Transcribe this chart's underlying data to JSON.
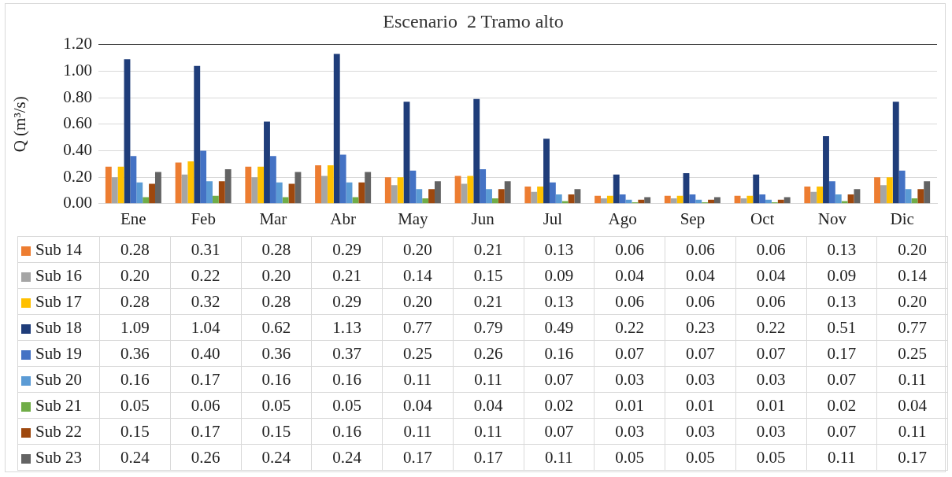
{
  "chart_data": {
    "type": "bar",
    "title": "Escenario  2 Tramo alto",
    "ylabel": "Q (m³/s)",
    "categories": [
      "Ene",
      "Feb",
      "Mar",
      "Abr",
      "May",
      "Jun",
      "Jul",
      "Ago",
      "Sep",
      "Oct",
      "Nov",
      "Dic"
    ],
    "series": [
      {
        "name": "Sub 14",
        "color": "#ed7d31",
        "values": [
          0.28,
          0.31,
          0.28,
          0.29,
          0.2,
          0.21,
          0.13,
          0.06,
          0.06,
          0.06,
          0.13,
          0.2
        ],
        "value_labels": [
          "0.28",
          "0.31",
          "0.28",
          "0.29",
          "0.20",
          "0.21",
          "0.13",
          "0.06",
          "0.06",
          "0.06",
          "0.13",
          "0.20"
        ]
      },
      {
        "name": "Sub 16",
        "color": "#a5a5a5",
        "values": [
          0.2,
          0.22,
          0.2,
          0.21,
          0.14,
          0.15,
          0.09,
          0.04,
          0.04,
          0.04,
          0.09,
          0.14
        ],
        "value_labels": [
          "0.20",
          "0.22",
          "0.20",
          "0.21",
          "0.14",
          "0.15",
          "0.09",
          "0.04",
          "0.04",
          "0.04",
          "0.09",
          "0.14"
        ]
      },
      {
        "name": "Sub 17",
        "color": "#ffc000",
        "values": [
          0.28,
          0.32,
          0.28,
          0.29,
          0.2,
          0.21,
          0.13,
          0.06,
          0.06,
          0.06,
          0.13,
          0.2
        ],
        "value_labels": [
          "0.28",
          "0.32",
          "0.28",
          "0.29",
          "0.20",
          "0.21",
          "0.13",
          "0.06",
          "0.06",
          "0.06",
          "0.13",
          "0.20"
        ]
      },
      {
        "name": "Sub 18",
        "color": "#1f3d7a",
        "values": [
          1.09,
          1.04,
          0.62,
          1.13,
          0.77,
          0.79,
          0.49,
          0.22,
          0.23,
          0.22,
          0.51,
          0.77
        ],
        "value_labels": [
          "1.09",
          "1.04",
          "0.62",
          "1.13",
          "0.77",
          "0.79",
          "0.49",
          "0.22",
          "0.23",
          "0.22",
          "0.51",
          "0.77"
        ]
      },
      {
        "name": "Sub 19",
        "color": "#4472c4",
        "values": [
          0.36,
          0.4,
          0.36,
          0.37,
          0.25,
          0.26,
          0.16,
          0.07,
          0.07,
          0.07,
          0.17,
          0.25
        ],
        "value_labels": [
          "0.36",
          "0.40",
          "0.36",
          "0.37",
          "0.25",
          "0.26",
          "0.16",
          "0.07",
          "0.07",
          "0.07",
          "0.17",
          "0.25"
        ]
      },
      {
        "name": "Sub 20",
        "color": "#5b9bd5",
        "values": [
          0.16,
          0.17,
          0.16,
          0.16,
          0.11,
          0.11,
          0.07,
          0.03,
          0.03,
          0.03,
          0.07,
          0.11
        ],
        "value_labels": [
          "0.16",
          "0.17",
          "0.16",
          "0.16",
          "0.11",
          "0.11",
          "0.07",
          "0.03",
          "0.03",
          "0.03",
          "0.07",
          "0.11"
        ]
      },
      {
        "name": "Sub 21",
        "color": "#70ad47",
        "values": [
          0.05,
          0.06,
          0.05,
          0.05,
          0.04,
          0.04,
          0.02,
          0.01,
          0.01,
          0.01,
          0.02,
          0.04
        ],
        "value_labels": [
          "0.05",
          "0.06",
          "0.05",
          "0.05",
          "0.04",
          "0.04",
          "0.02",
          "0.01",
          "0.01",
          "0.01",
          "0.02",
          "0.04"
        ]
      },
      {
        "name": "Sub 22",
        "color": "#9e480e",
        "values": [
          0.15,
          0.17,
          0.15,
          0.16,
          0.11,
          0.11,
          0.07,
          0.03,
          0.03,
          0.03,
          0.07,
          0.11
        ],
        "value_labels": [
          "0.15",
          "0.17",
          "0.15",
          "0.16",
          "0.11",
          "0.11",
          "0.07",
          "0.03",
          "0.03",
          "0.03",
          "0.07",
          "0.11"
        ]
      },
      {
        "name": "Sub 23",
        "color": "#636363",
        "values": [
          0.24,
          0.26,
          0.24,
          0.24,
          0.17,
          0.17,
          0.11,
          0.05,
          0.05,
          0.05,
          0.11,
          0.17
        ],
        "value_labels": [
          "0.24",
          "0.26",
          "0.24",
          "0.24",
          "0.17",
          "0.17",
          "0.11",
          "0.05",
          "0.05",
          "0.05",
          "0.11",
          "0.17"
        ]
      }
    ],
    "ylim": [
      0,
      1.2
    ],
    "yticks": [
      {
        "value": 0,
        "label": "0.00"
      },
      {
        "value": 0.2,
        "label": "0.20"
      },
      {
        "value": 0.4,
        "label": "0.40"
      },
      {
        "value": 0.6,
        "label": "0.60"
      },
      {
        "value": 0.8,
        "label": "0.80"
      },
      {
        "value": 1.0,
        "label": "1.00"
      },
      {
        "value": 1.2,
        "label": "1.20"
      }
    ],
    "grid": "y",
    "legend": "bottom"
  }
}
